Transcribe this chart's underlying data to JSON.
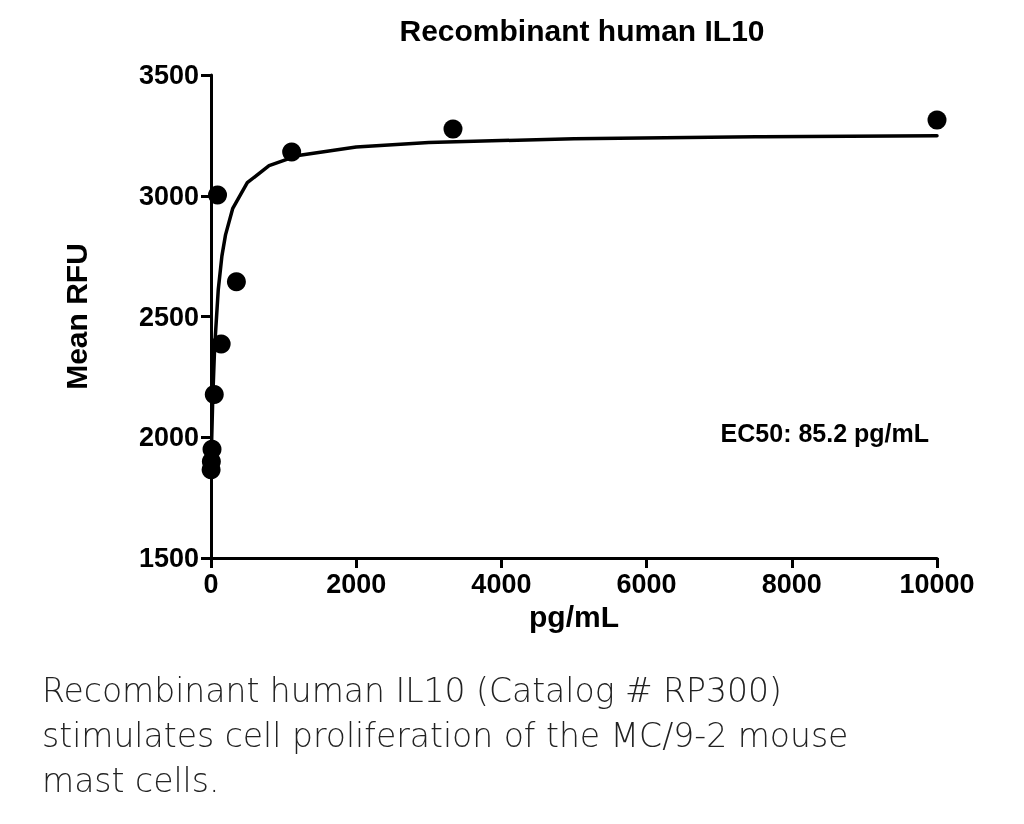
{
  "chart_data": {
    "type": "scatter",
    "title": "Recombinant human IL10",
    "xlabel": "pg/mL",
    "ylabel": "Mean RFU",
    "xlim": [
      0,
      10000
    ],
    "xticks": [
      0,
      2000,
      4000,
      6000,
      8000,
      10000
    ],
    "ylim": [
      1500,
      3500
    ],
    "yticks": [
      1500,
      2000,
      2500,
      3000,
      3500
    ],
    "grid": false,
    "marker": "circle",
    "series": [
      {
        "color": "#000000",
        "x": [
          10000,
          3333,
          1111,
          350,
          90,
          140,
          45,
          14,
          5,
          1.5
        ],
        "values": [
          3314,
          3276,
          3181,
          2644,
          3003,
          2386,
          2177,
          1950,
          1900,
          1865
        ]
      },
      {
        "type": "line",
        "color": "#000000",
        "line_style": "solid",
        "marker": "none",
        "x": [
          0,
          10,
          25,
          50,
          100,
          150,
          200,
          300,
          500,
          800,
          1200,
          2000,
          3000,
          5000,
          7500,
          10000
        ],
        "values": [
          1850,
          1998,
          2170,
          2372,
          2611,
          2750,
          2838,
          2948,
          3054,
          3125,
          3167,
          3202,
          3221,
          3236,
          3244,
          3248
        ]
      }
    ],
    "annotations": [
      "EC50: 85.2 pg/mL",
      "Recombinant human IL10 (Catalog # RP300) stimulates cell proliferation of the MC/9-2 mouse mast cells."
    ]
  }
}
